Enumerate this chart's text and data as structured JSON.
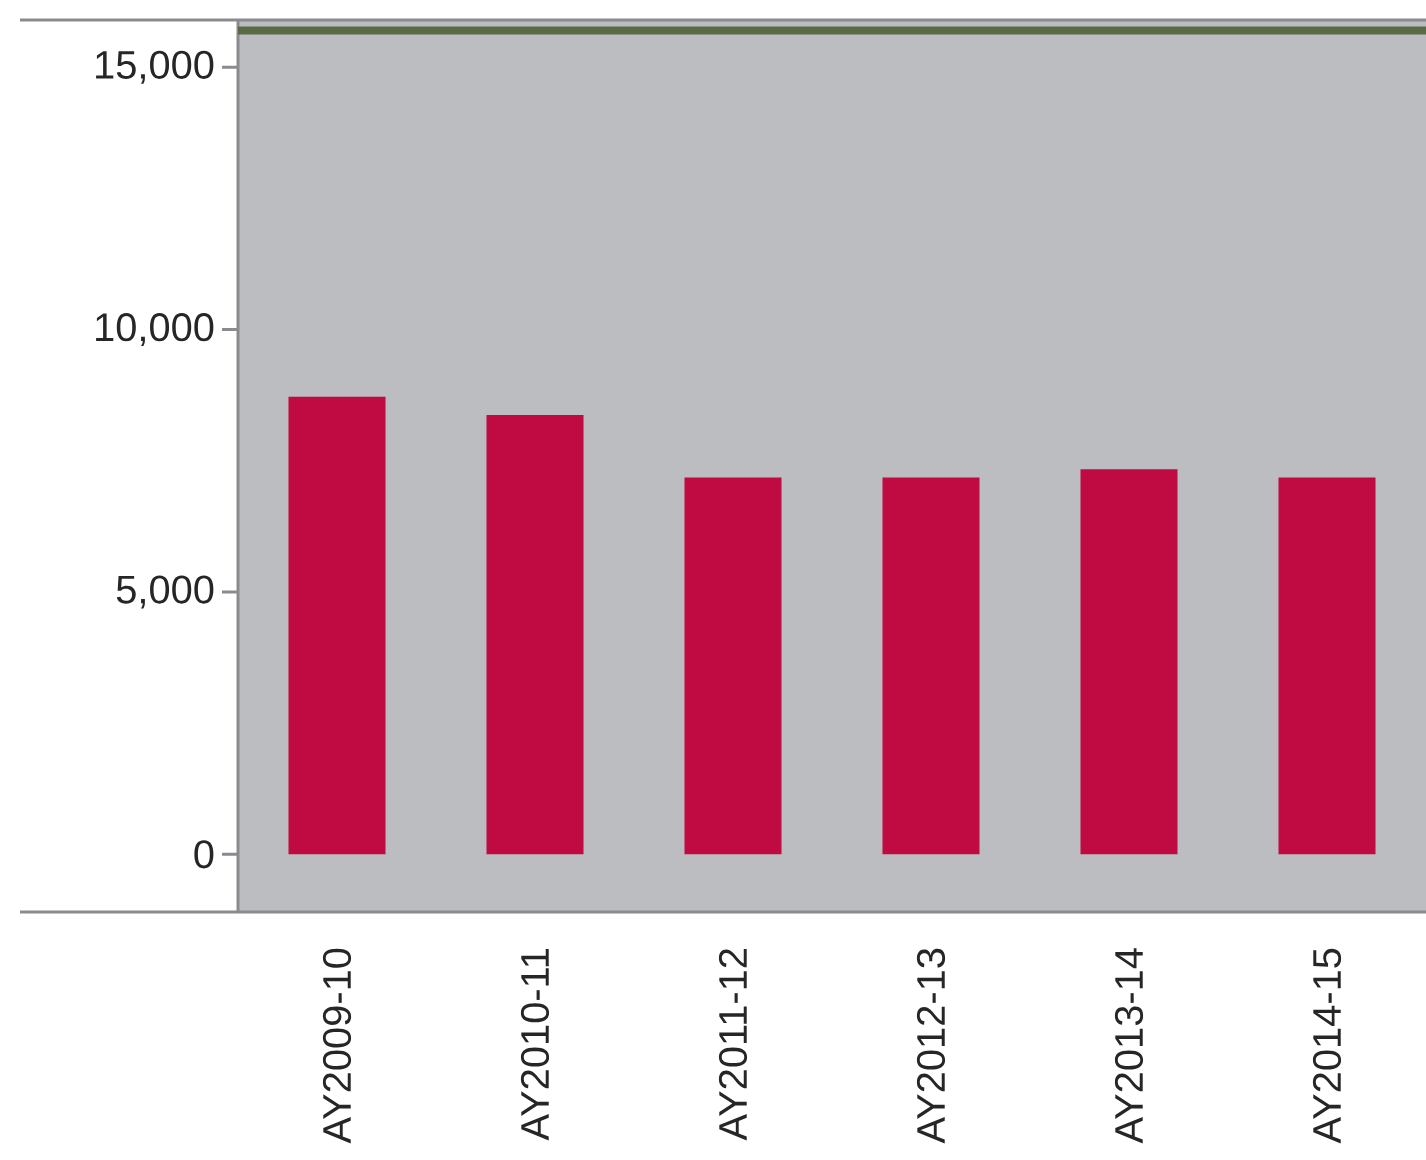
{
  "chart_data": {
    "type": "bar",
    "categories": [
      "AY2009-10",
      "AY2010-11",
      "AY2011-12",
      "AY2012-13",
      "AY2013-14",
      "AY2014-15"
    ],
    "values": [
      8720,
      8370,
      7180,
      7180,
      7340,
      7180
    ],
    "color": "#c00a42",
    "ylim": [
      -1100,
      15900
    ],
    "yticks": [
      {
        "value": 0,
        "label": "0"
      },
      {
        "value": 5000,
        "label": "5,000"
      },
      {
        "value": 10000,
        "label": "10,000"
      },
      {
        "value": 15000,
        "label": "15,000"
      }
    ],
    "ref_lines": [
      {
        "axis": "y",
        "value": 15700,
        "color": "#5a6a45"
      }
    ]
  }
}
